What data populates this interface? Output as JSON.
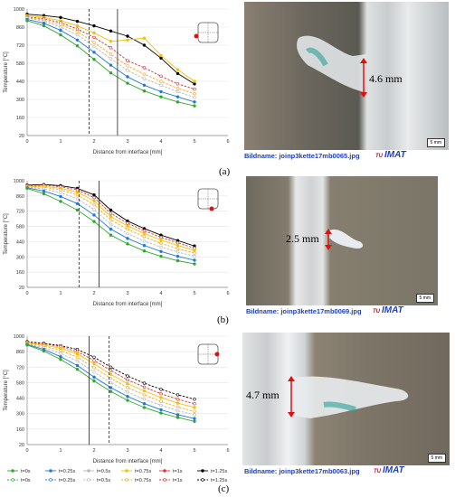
{
  "chart_data": [
    {
      "type": "line",
      "panel": "a",
      "ylabel": "Temperature [°C]",
      "xlabel": "Distance from interface [mm]",
      "xlim": [
        0,
        6
      ],
      "ylim": [
        20,
        1000
      ],
      "xticks": [
        "0",
        "1",
        "2",
        "3",
        "4",
        "5",
        "6"
      ],
      "yticks": [
        "20",
        "160",
        "300",
        "440",
        "580",
        "720",
        "860",
        "1000"
      ],
      "dashed_line_x": 1.85,
      "solid_line_x": 2.7,
      "x": [
        0,
        0.5,
        1,
        1.5,
        2,
        2.5,
        3,
        3.5,
        4,
        4.5,
        5
      ],
      "series": [
        {
          "values": [
            960,
            950,
            935,
            905,
            870,
            830,
            790,
            720,
            620,
            500,
            420
          ],
          "color": "#000000",
          "dashed": false
        },
        {
          "values": [
            950,
            935,
            910,
            870,
            815,
            750,
            760,
            775,
            640,
            530,
            440
          ],
          "color": "#f2c200",
          "dashed": false
        },
        {
          "values": [
            940,
            925,
            895,
            845,
            780,
            700,
            600,
            545,
            480,
            420,
            380
          ],
          "color": "#e03030",
          "dashed": true
        },
        {
          "values": [
            935,
            915,
            880,
            825,
            740,
            650,
            560,
            495,
            440,
            385,
            345
          ],
          "color": "#f5a623",
          "dashed": true
        },
        {
          "values": [
            930,
            905,
            860,
            800,
            710,
            615,
            525,
            460,
            410,
            360,
            315
          ],
          "color": "#b8b8b8",
          "dashed": true
        },
        {
          "values": [
            920,
            890,
            835,
            760,
            665,
            565,
            475,
            410,
            360,
            320,
            280
          ],
          "color": "#1f7ad6",
          "dashed": false
        },
        {
          "values": [
            910,
            870,
            800,
            715,
            610,
            505,
            425,
            365,
            320,
            280,
            250
          ],
          "color": "#2ea82e",
          "dashed": false
        }
      ]
    },
    {
      "type": "line",
      "panel": "b",
      "ylabel": "Temperature [°C]",
      "xlabel": "Distance from interface [mm]",
      "xlim": [
        0,
        6
      ],
      "ylim": [
        20,
        1000
      ],
      "xticks": [
        "0",
        "1",
        "2",
        "3",
        "4",
        "5",
        "6"
      ],
      "yticks": [
        "20",
        "160",
        "300",
        "440",
        "580",
        "720",
        "860",
        "1000"
      ],
      "dashed_line_x": 1.55,
      "solid_line_x": 2.15,
      "x": [
        0,
        0.5,
        1,
        1.5,
        2,
        2.5,
        3,
        3.5,
        4,
        4.5,
        5
      ],
      "series": [
        {
          "values": [
            960,
            965,
            955,
            930,
            870,
            730,
            630,
            560,
            500,
            450,
            400
          ],
          "color": "#000000",
          "dashed": false
        },
        {
          "values": [
            955,
            960,
            945,
            915,
            845,
            700,
            610,
            540,
            480,
            430,
            380
          ],
          "color": "#e03030",
          "dashed": true
        },
        {
          "values": [
            950,
            950,
            930,
            895,
            815,
            670,
            585,
            515,
            455,
            405,
            360
          ],
          "color": "#f2c200",
          "dashed": false
        },
        {
          "values": [
            945,
            940,
            915,
            870,
            780,
            640,
            555,
            485,
            425,
            375,
            335
          ],
          "color": "#f5a623",
          "dashed": true
        },
        {
          "values": [
            940,
            925,
            890,
            835,
            735,
            600,
            515,
            445,
            390,
            345,
            305
          ],
          "color": "#b8b8b8",
          "dashed": true
        },
        {
          "values": [
            935,
            905,
            855,
            790,
            685,
            555,
            470,
            405,
            350,
            305,
            270
          ],
          "color": "#1f7ad6",
          "dashed": false
        },
        {
          "values": [
            930,
            880,
            810,
            730,
            625,
            500,
            420,
            355,
            305,
            265,
            235
          ],
          "color": "#2ea82e",
          "dashed": false
        }
      ]
    },
    {
      "type": "line",
      "panel": "c",
      "ylabel": "Temperature [°C]",
      "xlabel": "Distance from interface [mm]",
      "xlim": [
        0,
        6
      ],
      "ylim": [
        20,
        1000
      ],
      "xticks": [
        "0",
        "1",
        "2",
        "3",
        "4",
        "5",
        "6"
      ],
      "yticks": [
        "20",
        "160",
        "300",
        "440",
        "580",
        "720",
        "860",
        "1000"
      ],
      "dashed_line_x": 2.45,
      "solid_line_x": 1.85,
      "x": [
        0,
        0.5,
        1,
        1.5,
        2,
        2.5,
        3,
        3.5,
        4,
        4.5,
        5
      ],
      "series": [
        {
          "values": [
            950,
            935,
            915,
            880,
            810,
            720,
            640,
            575,
            520,
            470,
            430
          ],
          "color": "#000000",
          "dashed": true
        },
        {
          "values": [
            945,
            930,
            905,
            860,
            780,
            690,
            605,
            540,
            480,
            430,
            390
          ],
          "color": "#e03030",
          "dashed": true
        },
        {
          "values": [
            940,
            920,
            890,
            840,
            750,
            655,
            570,
            505,
            445,
            395,
            355
          ],
          "color": "#f2c200",
          "dashed": false
        },
        {
          "values": [
            935,
            910,
            870,
            810,
            715,
            620,
            535,
            470,
            410,
            360,
            320
          ],
          "color": "#f5a623",
          "dashed": true
        },
        {
          "values": [
            930,
            895,
            845,
            775,
            675,
            580,
            495,
            430,
            375,
            325,
            290
          ],
          "color": "#b8b8b8",
          "dashed": true
        },
        {
          "values": [
            925,
            880,
            815,
            735,
            630,
            535,
            455,
            390,
            335,
            290,
            255
          ],
          "color": "#1f7ad6",
          "dashed": false
        },
        {
          "values": [
            920,
            865,
            790,
            700,
            595,
            500,
            420,
            355,
            305,
            265,
            230
          ],
          "color": "#2ea82e",
          "dashed": false
        }
      ]
    }
  ],
  "legend": [
    {
      "label": "t=0s",
      "color": "#2ea82e",
      "dashed": false
    },
    {
      "label": "t=0.25s",
      "color": "#1f7ad6",
      "dashed": false
    },
    {
      "label": "t=0.5s",
      "color": "#b8b8b8",
      "dashed": false
    },
    {
      "label": "t=0.75s",
      "color": "#f2c200",
      "dashed": false
    },
    {
      "label": "t=1s",
      "color": "#e03030",
      "dashed": false
    },
    {
      "label": "t=1.25s",
      "color": "#000000",
      "dashed": false
    },
    {
      "label": "t=0s",
      "color": "#2ea82e",
      "dashed": true
    },
    {
      "label": "t=0.25s",
      "color": "#1f7ad6",
      "dashed": true
    },
    {
      "label": "t=0.5s",
      "color": "#b8b8b8",
      "dashed": true
    },
    {
      "label": "t=0.75s",
      "color": "#f5a623",
      "dashed": true
    },
    {
      "label": "t=1s",
      "color": "#e03030",
      "dashed": true
    },
    {
      "label": "t=1.25s",
      "color": "#000000",
      "dashed": true
    }
  ],
  "photos": {
    "a": {
      "measurement": "4.6 mm",
      "caption": "Bildname: joinp3kette17mb0065.jpg",
      "scale": "5 mm"
    },
    "b": {
      "measurement": "2.5 mm",
      "caption": "Bildname: joinp3kette17mb0069.jpg",
      "scale": "5 mm"
    },
    "c": {
      "measurement": "4.7 mm",
      "caption": "Bildname: joinp3kette17mb0063.jpg",
      "scale": "5 mm"
    }
  },
  "logo": {
    "tu": "TU",
    "name": "IMAT"
  },
  "panel_labels": {
    "a": "(a)",
    "b": "(b)",
    "c": "(c)"
  }
}
